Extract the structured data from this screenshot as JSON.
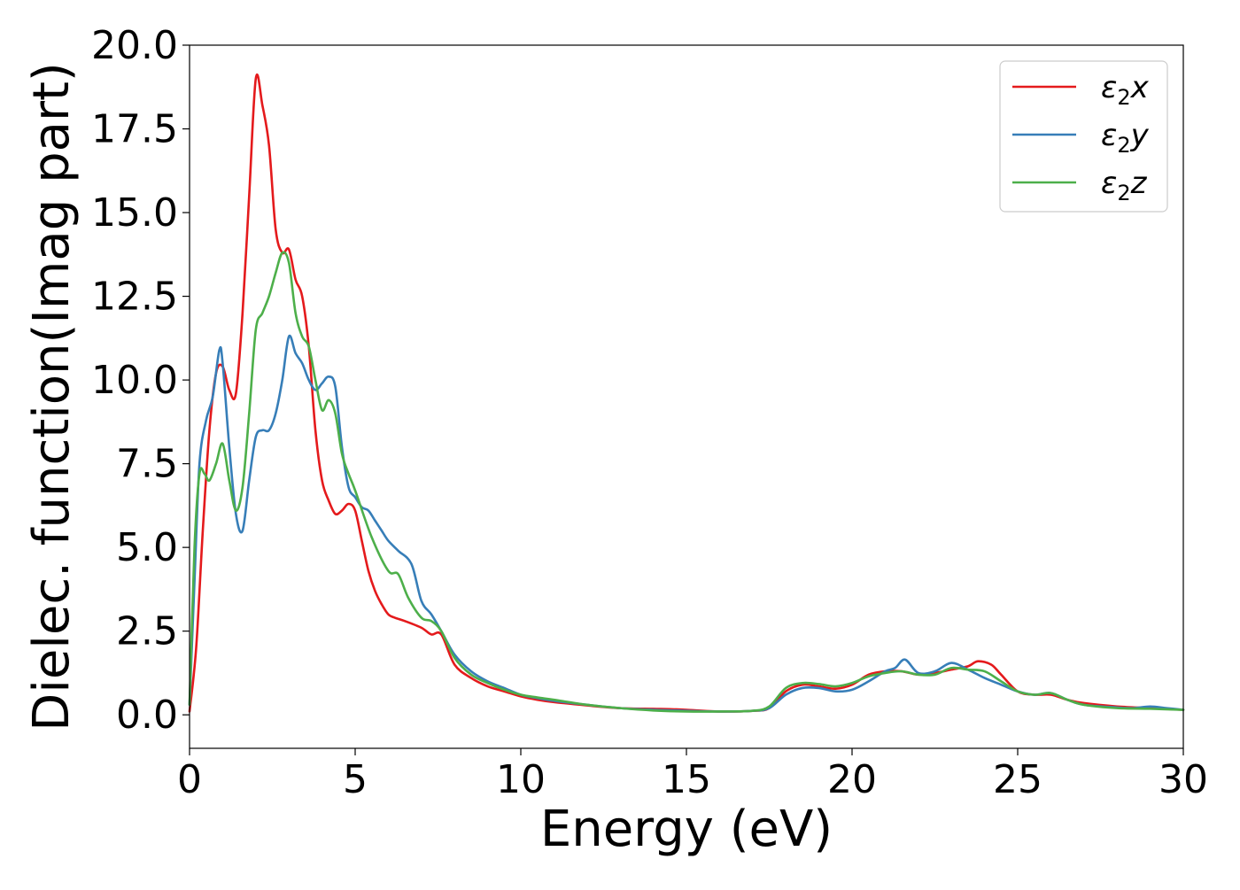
{
  "chart_data": {
    "type": "line",
    "title": "",
    "xlabel": "Energy (eV)",
    "ylabel": "Dielec. function(Imag part)",
    "xlim": [
      0,
      30
    ],
    "ylim": [
      -1.0,
      20.0
    ],
    "xticks": [
      0,
      5,
      10,
      15,
      20,
      25,
      30
    ],
    "xtick_labels": [
      "0",
      "5",
      "10",
      "15",
      "20",
      "25",
      "30"
    ],
    "yticks": [
      0.0,
      2.5,
      5.0,
      7.5,
      10.0,
      12.5,
      15.0,
      17.5,
      20.0
    ],
    "ytick_labels": [
      "0.0",
      "2.5",
      "5.0",
      "7.5",
      "10.0",
      "12.5",
      "15.0",
      "17.5",
      "20.0"
    ],
    "grid": false,
    "legend_position": "top-right",
    "series": [
      {
        "name": "ε₂x",
        "legend_base": "ε",
        "legend_sub": "2",
        "legend_tail": "x",
        "color": "#e41a1c",
        "x": [
          0,
          0.2,
          0.4,
          0.6,
          0.8,
          1.0,
          1.2,
          1.4,
          1.6,
          1.8,
          2.0,
          2.2,
          2.4,
          2.6,
          2.8,
          3.0,
          3.2,
          3.4,
          3.6,
          3.8,
          4.0,
          4.2,
          4.4,
          4.6,
          4.8,
          5.0,
          5.2,
          5.4,
          5.6,
          5.8,
          6.0,
          6.2,
          6.5,
          7.0,
          7.3,
          7.6,
          8.0,
          8.5,
          9.0,
          9.5,
          10.0,
          10.5,
          11.0,
          12.0,
          13.0,
          14.0,
          14.5,
          15.0,
          16.0,
          17.0,
          17.5,
          18.0,
          18.5,
          19.0,
          19.5,
          20.0,
          20.5,
          21.0,
          21.5,
          22.0,
          22.5,
          23.0,
          23.5,
          23.8,
          24.2,
          24.5,
          25.0,
          25.5,
          26.0,
          26.5,
          27.0,
          28.0,
          29.0,
          30.0
        ],
        "y": [
          0.1,
          2.0,
          5.5,
          8.5,
          10.2,
          10.4,
          9.7,
          9.6,
          12.0,
          15.5,
          19.0,
          18.2,
          17.0,
          14.5,
          13.8,
          13.9,
          13.0,
          12.5,
          11.0,
          8.5,
          7.0,
          6.4,
          6.0,
          6.1,
          6.3,
          6.1,
          5.2,
          4.3,
          3.7,
          3.3,
          3.0,
          2.9,
          2.8,
          2.6,
          2.4,
          2.4,
          1.5,
          1.1,
          0.85,
          0.7,
          0.55,
          0.45,
          0.38,
          0.28,
          0.2,
          0.18,
          0.17,
          0.15,
          0.1,
          0.12,
          0.2,
          0.7,
          0.9,
          0.85,
          0.78,
          0.9,
          1.2,
          1.3,
          1.3,
          1.2,
          1.25,
          1.35,
          1.45,
          1.6,
          1.5,
          1.2,
          0.7,
          0.6,
          0.6,
          0.45,
          0.35,
          0.25,
          0.2,
          0.15
        ]
      },
      {
        "name": "ε₂y",
        "legend_base": "ε",
        "legend_sub": "2",
        "legend_tail": "y",
        "color": "#377eb8",
        "x": [
          0,
          0.15,
          0.3,
          0.5,
          0.7,
          0.9,
          1.0,
          1.2,
          1.4,
          1.6,
          1.8,
          2.0,
          2.2,
          2.4,
          2.6,
          2.8,
          3.0,
          3.2,
          3.4,
          3.6,
          3.8,
          4.0,
          4.2,
          4.4,
          4.6,
          4.8,
          5.0,
          5.2,
          5.4,
          5.6,
          5.8,
          6.0,
          6.3,
          6.7,
          7.0,
          7.3,
          7.6,
          8.0,
          8.5,
          9.0,
          9.5,
          10.0,
          10.5,
          11.0,
          12.0,
          13.0,
          14.0,
          15.0,
          16.0,
          17.0,
          17.5,
          18.0,
          18.5,
          19.0,
          19.5,
          20.0,
          20.5,
          21.0,
          21.3,
          21.6,
          22.0,
          22.5,
          23.0,
          23.5,
          24.0,
          24.5,
          25.0,
          25.5,
          26.0,
          26.5,
          27.0,
          28.0,
          28.5,
          29.0,
          29.5,
          30.0
        ],
        "y": [
          0.3,
          4.0,
          7.5,
          8.8,
          9.5,
          10.9,
          10.5,
          8.0,
          6.0,
          5.5,
          7.0,
          8.3,
          8.5,
          8.5,
          9.0,
          10.0,
          11.3,
          10.8,
          10.5,
          10.0,
          9.7,
          9.9,
          10.1,
          9.8,
          8.0,
          6.8,
          6.5,
          6.2,
          6.1,
          5.8,
          5.5,
          5.2,
          4.9,
          4.5,
          3.4,
          3.0,
          2.5,
          1.8,
          1.3,
          1.0,
          0.8,
          0.6,
          0.5,
          0.42,
          0.3,
          0.2,
          0.15,
          0.12,
          0.1,
          0.12,
          0.2,
          0.6,
          0.8,
          0.8,
          0.7,
          0.75,
          1.0,
          1.3,
          1.4,
          1.65,
          1.25,
          1.3,
          1.55,
          1.35,
          1.1,
          0.9,
          0.7,
          0.6,
          0.65,
          0.45,
          0.3,
          0.22,
          0.2,
          0.25,
          0.2,
          0.15
        ]
      },
      {
        "name": "ε₂z",
        "legend_base": "ε",
        "legend_sub": "2",
        "legend_tail": "z",
        "color": "#4daf4a",
        "x": [
          0,
          0.15,
          0.3,
          0.45,
          0.6,
          0.8,
          1.0,
          1.2,
          1.4,
          1.6,
          1.8,
          2.0,
          2.2,
          2.4,
          2.6,
          2.8,
          3.0,
          3.2,
          3.4,
          3.6,
          3.8,
          4.0,
          4.2,
          4.4,
          4.6,
          4.8,
          5.0,
          5.5,
          6.0,
          6.3,
          6.6,
          7.0,
          7.3,
          7.6,
          8.0,
          8.5,
          9.0,
          9.5,
          10.0,
          10.5,
          11.0,
          12.0,
          13.0,
          14.0,
          15.0,
          16.0,
          17.0,
          17.5,
          18.0,
          18.5,
          19.0,
          19.5,
          20.0,
          20.5,
          21.0,
          21.5,
          22.0,
          22.5,
          23.0,
          23.5,
          24.0,
          24.5,
          25.0,
          25.5,
          26.0,
          26.5,
          27.0,
          28.0,
          29.0,
          30.0
        ],
        "y": [
          0.3,
          5.0,
          7.2,
          7.2,
          7.0,
          7.5,
          8.1,
          7.0,
          6.1,
          6.8,
          9.0,
          11.5,
          12.0,
          12.5,
          13.2,
          13.8,
          13.5,
          12.0,
          11.3,
          11.0,
          10.0,
          9.1,
          9.4,
          9.0,
          7.8,
          7.2,
          6.7,
          5.3,
          4.3,
          4.2,
          3.5,
          2.9,
          2.8,
          2.5,
          1.7,
          1.2,
          0.95,
          0.75,
          0.6,
          0.52,
          0.45,
          0.3,
          0.2,
          0.13,
          0.1,
          0.1,
          0.12,
          0.25,
          0.8,
          0.95,
          0.92,
          0.85,
          0.95,
          1.15,
          1.25,
          1.3,
          1.2,
          1.2,
          1.4,
          1.35,
          1.3,
          1.0,
          0.7,
          0.6,
          0.65,
          0.45,
          0.3,
          0.2,
          0.18,
          0.15
        ]
      }
    ]
  }
}
